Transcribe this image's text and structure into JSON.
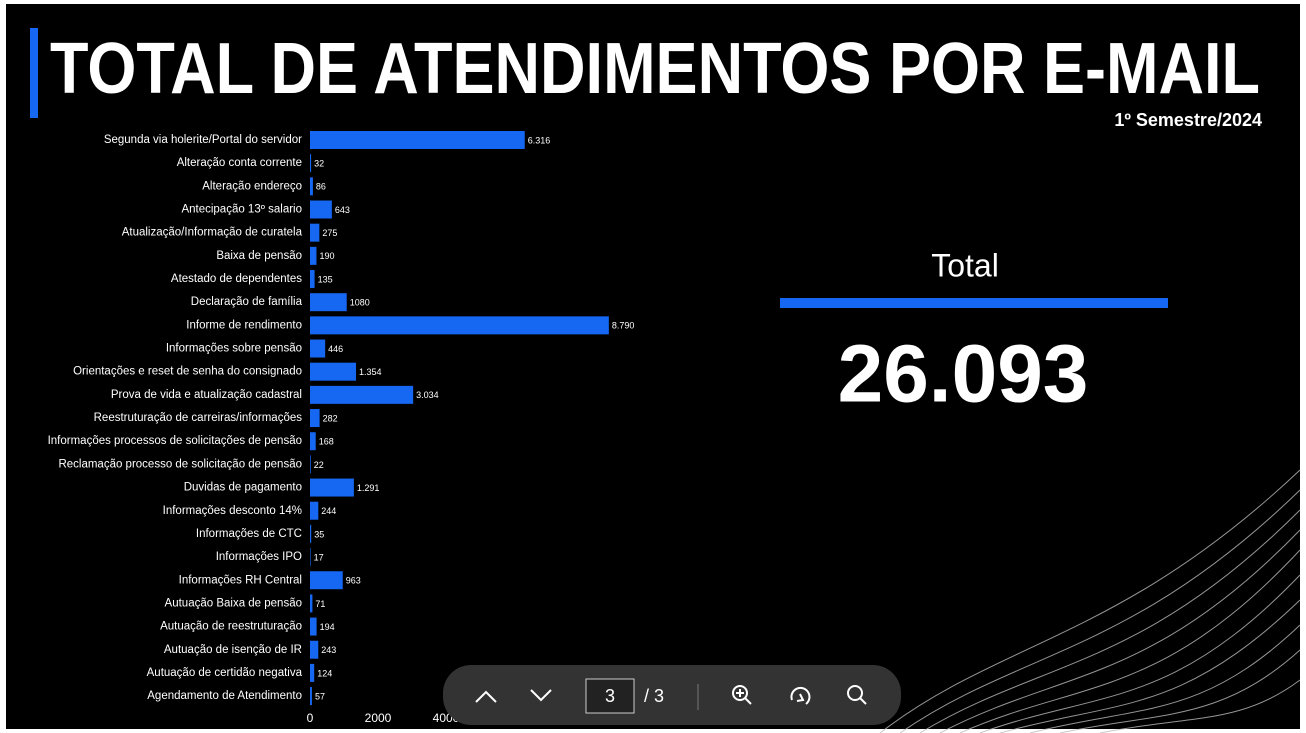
{
  "chart_data": {
    "type": "bar",
    "orientation": "horizontal",
    "title": "TOTAL DE ATENDIMENTOS POR E-MAIL",
    "subtitle": "1º Semestre/2024",
    "categories": [
      "Segunda via holerite/Portal do servidor",
      "Alteração conta corrente",
      "Alteração endereço",
      "Antecipação 13º salario",
      "Atualização/Informação de curatela",
      "Baixa de pensão",
      "Atestado de dependentes",
      "Declaração de família",
      "Informe de rendimento",
      "Informações sobre pensão",
      "Orientações e reset de senha do consignado",
      "Prova de vida e atualização cadastral",
      "Reestruturação de carreiras/informações",
      "Informações processos de solicitações de pensão",
      "Reclamação processo de solicitação de pensão",
      "Duvidas de pagamento",
      "Informações desconto 14%",
      "Informações de CTC",
      "Informações IPO",
      "Informações RH Central",
      "Autuação Baixa de pensão",
      "Autuação de reestruturação",
      "Autuação de isenção de IR",
      "Autuação de certidão negativa",
      "Agendamento de Atendimento"
    ],
    "values": [
      6316,
      32,
      86,
      643,
      275,
      190,
      135,
      1080,
      8790,
      446,
      1354,
      3034,
      282,
      168,
      22,
      1291,
      244,
      35,
      17,
      963,
      71,
      194,
      243,
      124,
      57
    ],
    "value_labels": [
      "6.316",
      "32",
      "86",
      "643",
      "275",
      "190",
      "135",
      "1080",
      "8.790",
      "446",
      "1.354",
      "3.034",
      "282",
      "168",
      "22",
      "1.291",
      "244",
      "35",
      "17",
      "963",
      "71",
      "194",
      "243",
      "124",
      "57"
    ],
    "color": "#1667f2",
    "xlim": [
      0,
      10000
    ],
    "xticks": [
      0,
      2000,
      4000
    ]
  },
  "total": {
    "label": "Total",
    "value": "26.093"
  },
  "toolbar": {
    "page": "3",
    "page_count": "/ 3"
  }
}
